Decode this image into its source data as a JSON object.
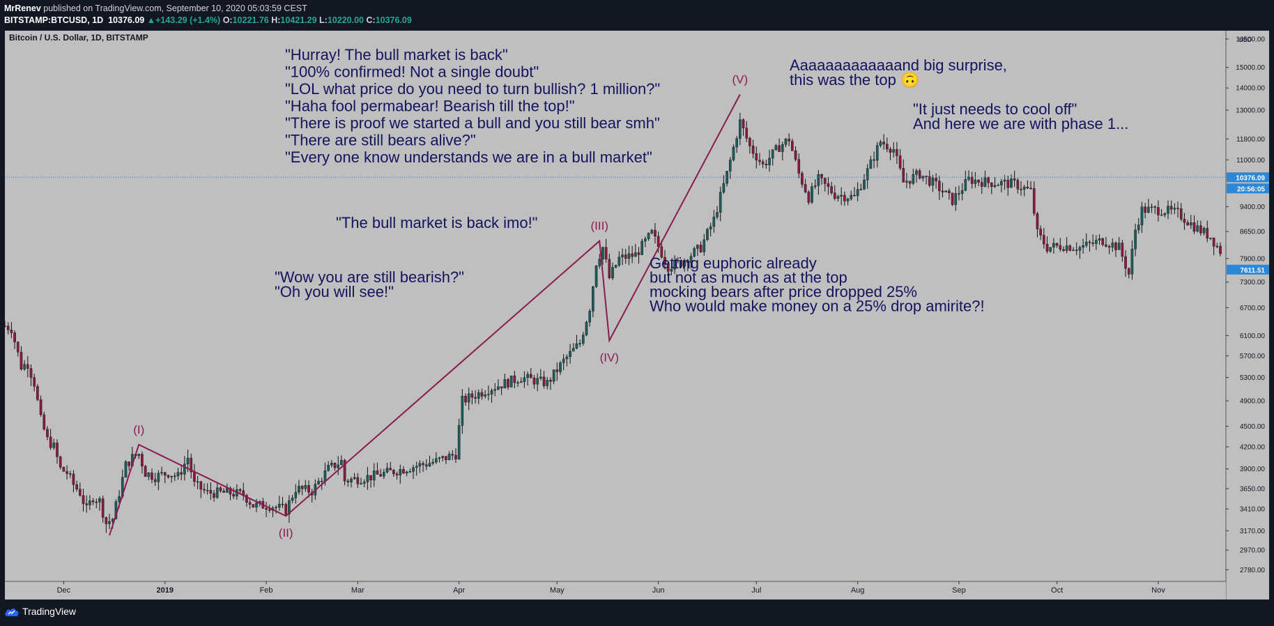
{
  "header": {
    "author": "MrRenev",
    "published_text": "published on TradingView.com, September 10, 2020 05:03:59 CEST",
    "symbol": "BITSTAMP:BTCUSD, 1D",
    "last": "10376.09",
    "change": "▲+143.29 (+1.4%)",
    "o_label": "O:",
    "o_value": "10221.76",
    "h_label": "H:",
    "h_value": "10421.29",
    "l_label": "L:",
    "l_value": "10220.00",
    "c_label": "C:",
    "c_value": "10376.09"
  },
  "chart_title": "Bitcoin / U.S. Dollar, 1D, BITSTAMP",
  "footer": {
    "brand": "TradingView"
  },
  "colors": {
    "background": "#bfbfbf",
    "up_candle": "#1e5c5c",
    "down_candle": "#8a1a3c",
    "wave_line": "#8b1a4f",
    "annotation_text": "#13135e",
    "price_badge": "#2b87d8"
  },
  "chart_data": {
    "type": "candlestick",
    "title": "Bitcoin / U.S. Dollar, 1D, BITSTAMP",
    "currency": "USD",
    "y_scale": "log",
    "ylim": [
      2600,
      16500
    ],
    "y_ticks": [
      2780,
      2970,
      3170,
      3410,
      3650,
      3900,
      4200,
      4500,
      4900,
      5300,
      5700,
      6100,
      6700,
      7300,
      7900,
      8650,
      9400,
      11000,
      11800,
      13000,
      14000,
      15000,
      16500
    ],
    "y_tick_labels": [
      "2780.00",
      "2970.00",
      "3170.00",
      "3410.00",
      "3650.00",
      "3900.00",
      "4200.00",
      "4500.00",
      "4900.00",
      "5300.00",
      "5700.00",
      "6100.00",
      "6700.00",
      "7300.00",
      "7900.00",
      "8650.00",
      "9400.00",
      "11000.00",
      "11800.00",
      "13000.00",
      "14000.00",
      "15000.00",
      "16500.00"
    ],
    "y_axis_unit": "USD",
    "x_tick_labels": [
      "Dec",
      "2019",
      "Feb",
      "Mar",
      "Apr",
      "May",
      "Jun",
      "Jul",
      "Aug",
      "Sep",
      "Oct",
      "Nov"
    ],
    "x_range": [
      "2018-11-13",
      "2019-11-20"
    ],
    "last_price_label": "10376.09",
    "countdown_label": "20:56:05",
    "marker_price_label": "7611.51",
    "current_price_level": 10376.09,
    "waves": [
      {
        "label": "(I)",
        "date": "2018-12-24",
        "price": 4230
      },
      {
        "label": "(II)",
        "date": "2019-02-07",
        "price": 3330
      },
      {
        "label": "(III)",
        "date": "2019-05-14",
        "price": 8380
      },
      {
        "label": "(IV)",
        "date": "2019-05-17",
        "price": 6000
      },
      {
        "label": "(V)",
        "date": "2019-06-26",
        "price": 13700
      }
    ],
    "wave_start": {
      "date": "2018-12-15",
      "price": 3120
    },
    "price_path": [
      [
        "2018-11-13",
        6300
      ],
      [
        "2018-11-15",
        6250
      ],
      [
        "2018-11-18",
        5500
      ],
      [
        "2018-11-20",
        5550
      ],
      [
        "2018-11-22",
        5200
      ],
      [
        "2018-11-24",
        4600
      ],
      [
        "2018-11-26",
        4300
      ],
      [
        "2018-11-28",
        4200
      ],
      [
        "2018-11-30",
        3900
      ],
      [
        "2018-12-02",
        3850
      ],
      [
        "2018-12-04",
        3700
      ],
      [
        "2018-12-06",
        3600
      ],
      [
        "2018-12-08",
        3400
      ],
      [
        "2018-12-10",
        3550
      ],
      [
        "2018-12-12",
        3500
      ],
      [
        "2018-12-14",
        3250
      ],
      [
        "2018-12-16",
        3300
      ],
      [
        "2018-12-18",
        3600
      ],
      [
        "2018-12-20",
        3950
      ],
      [
        "2018-12-22",
        4050
      ],
      [
        "2018-12-24",
        4100
      ],
      [
        "2018-12-26",
        3850
      ],
      [
        "2018-12-29",
        3800
      ],
      [
        "2019-01-02",
        3850
      ],
      [
        "2019-01-05",
        3800
      ],
      [
        "2019-01-08",
        4050
      ],
      [
        "2019-01-10",
        3700
      ],
      [
        "2019-01-14",
        3600
      ],
      [
        "2019-01-20",
        3600
      ],
      [
        "2019-01-25",
        3580
      ],
      [
        "2019-01-28",
        3450
      ],
      [
        "2019-02-02",
        3450
      ],
      [
        "2019-02-07",
        3400
      ],
      [
        "2019-02-10",
        3650
      ],
      [
        "2019-02-15",
        3620
      ],
      [
        "2019-02-20",
        3900
      ],
      [
        "2019-02-24",
        4000
      ],
      [
        "2019-02-25",
        3750
      ],
      [
        "2019-03-05",
        3800
      ],
      [
        "2019-03-15",
        3900
      ],
      [
        "2019-03-25",
        4000
      ],
      [
        "2019-03-31",
        4100
      ],
      [
        "2019-04-02",
        4900
      ],
      [
        "2019-04-10",
        5100
      ],
      [
        "2019-04-20",
        5300
      ],
      [
        "2019-04-28",
        5200
      ],
      [
        "2019-05-03",
        5600
      ],
      [
        "2019-05-08",
        5950
      ],
      [
        "2019-05-11",
        6700
      ],
      [
        "2019-05-13",
        7800
      ],
      [
        "2019-05-15",
        8200
      ],
      [
        "2019-05-17",
        7400
      ],
      [
        "2019-05-20",
        7900
      ],
      [
        "2019-05-25",
        8000
      ],
      [
        "2019-05-30",
        8600
      ],
      [
        "2019-06-04",
        7700
      ],
      [
        "2019-06-08",
        7800
      ],
      [
        "2019-06-14",
        8200
      ],
      [
        "2019-06-18",
        9000
      ],
      [
        "2019-06-22",
        10500
      ],
      [
        "2019-06-26",
        12500
      ],
      [
        "2019-06-29",
        11500
      ],
      [
        "2019-07-03",
        10800
      ],
      [
        "2019-07-08",
        11500
      ],
      [
        "2019-07-11",
        11800
      ],
      [
        "2019-07-14",
        10500
      ],
      [
        "2019-07-17",
        9700
      ],
      [
        "2019-07-20",
        10300
      ],
      [
        "2019-07-25",
        9800
      ],
      [
        "2019-07-31",
        9700
      ],
      [
        "2019-08-04",
        10600
      ],
      [
        "2019-08-08",
        11700
      ],
      [
        "2019-08-12",
        11400
      ],
      [
        "2019-08-15",
        10200
      ],
      [
        "2019-08-20",
        10500
      ],
      [
        "2019-08-25",
        10100
      ],
      [
        "2019-08-30",
        9600
      ],
      [
        "2019-09-04",
        10300
      ],
      [
        "2019-09-10",
        10200
      ],
      [
        "2019-09-18",
        10150
      ],
      [
        "2019-09-23",
        9900
      ],
      [
        "2019-09-25",
        8600
      ],
      [
        "2019-09-28",
        8200
      ],
      [
        "2019-10-03",
        8250
      ],
      [
        "2019-10-08",
        8200
      ],
      [
        "2019-10-15",
        8400
      ],
      [
        "2019-10-20",
        8200
      ],
      [
        "2019-10-23",
        7500
      ],
      [
        "2019-10-25",
        8700
      ],
      [
        "2019-10-27",
        9300
      ],
      [
        "2019-11-02",
        9300
      ],
      [
        "2019-11-07",
        9200
      ],
      [
        "2019-11-12",
        8800
      ],
      [
        "2019-11-17",
        8500
      ],
      [
        "2019-11-20",
        8100
      ]
    ],
    "annotations": [
      {
        "lines": [
          "\"Hurray! The bull market is back\"",
          "\"100% confirmed! Not a single doubt\"",
          "\"LOL what price do you need to turn bullish? 1 million?\"",
          "\"Haha fool permabear! Bearish till the top!\"",
          "\"There is proof we started a bull and you still bear smh\"",
          "\"There are still bears alive?\"",
          "\"Every one know understands we are in a bull market\""
        ]
      },
      {
        "lines": [
          "Aaaaaaaaaaaaand big surprise,",
          "this was the top 🙃"
        ]
      },
      {
        "lines": [
          "\"It just needs to cool off\"",
          "And here we are with phase 1..."
        ]
      },
      {
        "lines": [
          "\"The bull market is back imo!\""
        ]
      },
      {
        "lines": [
          "\"Wow you are still bearish?\"",
          "\"Oh you will see!\""
        ]
      },
      {
        "lines": [
          "Getting euphoric already",
          "but not as much as at the top",
          "mocking bears after price dropped 25%",
          "Who would make money on a 25% drop amirite?!"
        ]
      }
    ]
  }
}
